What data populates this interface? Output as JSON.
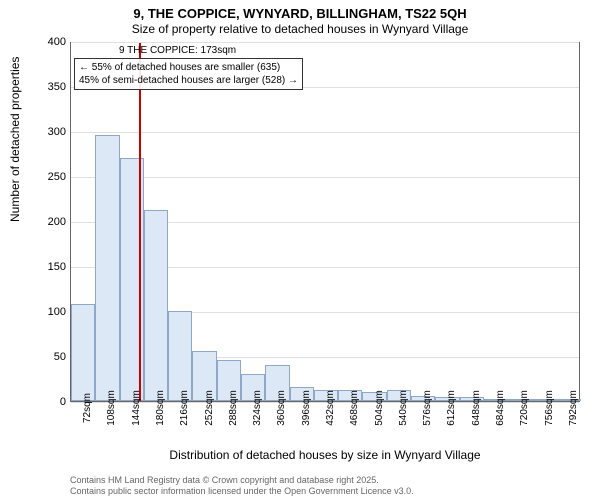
{
  "chart": {
    "type": "histogram",
    "title_line1": "9, THE COPPICE, WYNYARD, BILLINGHAM, TS22 5QH",
    "title_line2": "Size of property relative to detached houses in Wynyard Village",
    "ylabel": "Number of detached properties",
    "xlabel": "Distribution of detached houses by size in Wynyard Village",
    "ylim": [
      0,
      400
    ],
    "yticks": [
      0,
      50,
      100,
      150,
      200,
      250,
      300,
      350,
      400
    ],
    "xticks": [
      "72sqm",
      "108sqm",
      "144sqm",
      "180sqm",
      "216sqm",
      "252sqm",
      "288sqm",
      "324sqm",
      "360sqm",
      "396sqm",
      "432sqm",
      "468sqm",
      "504sqm",
      "540sqm",
      "576sqm",
      "612sqm",
      "648sqm",
      "684sqm",
      "720sqm",
      "756sqm",
      "792sqm"
    ],
    "bar_values": [
      108,
      296,
      270,
      212,
      100,
      56,
      46,
      30,
      40,
      16,
      12,
      12,
      10,
      12,
      6,
      4,
      4,
      2,
      2,
      2,
      2
    ],
    "bar_fill": "#dce8f6",
    "bar_stroke": "#8fa8c8",
    "background_color": "#ffffff",
    "grid_color": "#e0e0e0",
    "border_color": "#666666",
    "reference_line": {
      "x_index": 2.8,
      "color": "#cc0000"
    },
    "annotation": {
      "title": "9 THE COPPICE: 173sqm",
      "line1": "← 55% of detached houses are smaller (635)",
      "line2": "45% of semi-detached houses are larger (528) →"
    },
    "footer_line1": "Contains HM Land Registry data © Crown copyright and database right 2025.",
    "footer_line2": "Contains public sector information licensed under the Open Government Licence v3.0.",
    "title_fontsize": 13,
    "subtitle_fontsize": 12,
    "label_fontsize": 12,
    "tick_fontsize": 11,
    "xtick_fontsize": 10,
    "annotation_fontsize": 10,
    "footer_fontsize": 9
  }
}
